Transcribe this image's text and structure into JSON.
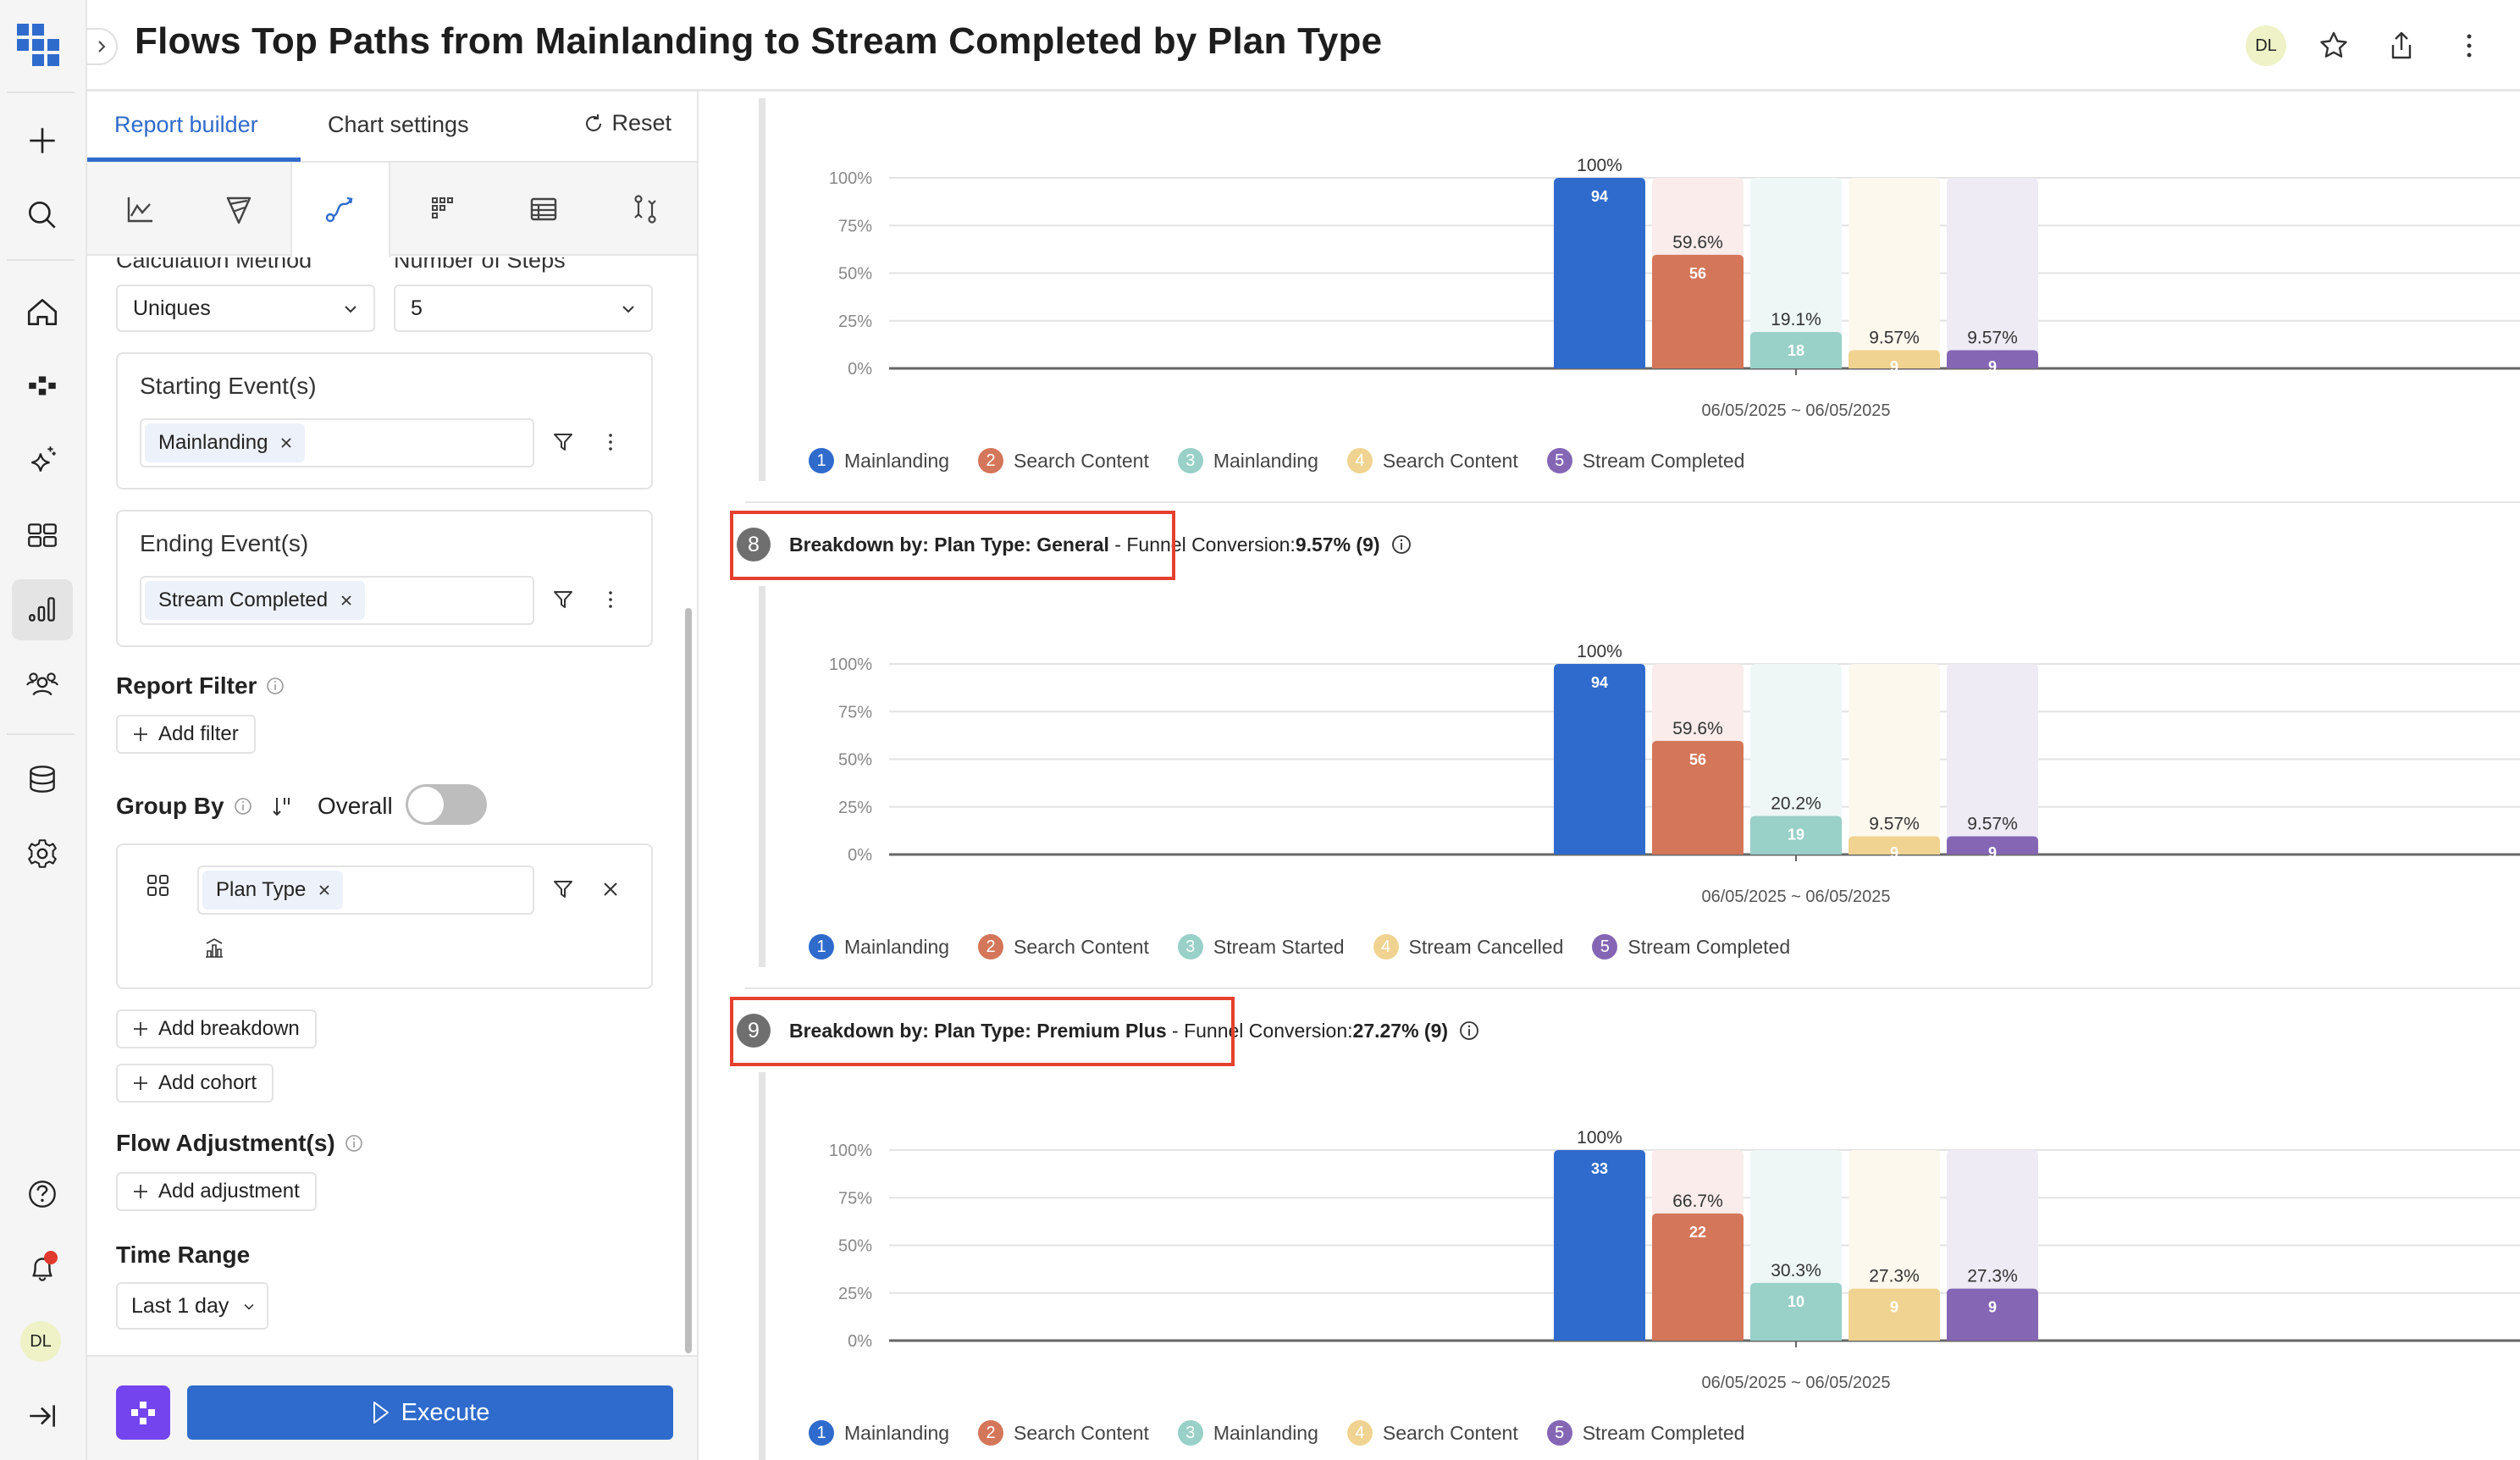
{
  "header": {
    "title": "Flows Top Paths from Mainlanding to Stream Completed by Plan Type",
    "avatar_initials": "DL"
  },
  "rail": {
    "avatar_initials": "DL",
    "items": [
      "add",
      "search",
      "home",
      "flows",
      "ai-insights",
      "dashboards",
      "reports",
      "users",
      "data",
      "settings",
      "help",
      "notifications",
      "collapse"
    ],
    "active": "reports",
    "notification_dot": true
  },
  "panel": {
    "tabs": [
      {
        "label": "Report builder",
        "active": true
      },
      {
        "label": "Chart settings",
        "active": false
      }
    ],
    "reset_label": "Reset",
    "chart_types": [
      "trend",
      "funnel",
      "flows",
      "heatmap",
      "table",
      "compare"
    ],
    "active_chart_type": "flows",
    "calculation_method": {
      "label": "Calculation Method",
      "value": "Uniques"
    },
    "number_of_steps": {
      "label": "Number of Steps",
      "value": "5"
    },
    "starting_events": {
      "title": "Starting Event(s)",
      "tag": "Mainlanding"
    },
    "ending_events": {
      "title": "Ending Event(s)",
      "tag": "Stream Completed"
    },
    "report_filter": {
      "title": "Report Filter",
      "add_label": "Add filter"
    },
    "group_by": {
      "title": "Group By",
      "overall_label": "Overall",
      "overall_on": false,
      "tag": "Plan Type"
    },
    "add_breakdown_label": "Add breakdown",
    "add_cohort_label": "Add cohort",
    "flow_adjustments": {
      "title": "Flow Adjustment(s)",
      "add_label": "Add adjustment"
    },
    "time_range": {
      "title": "Time Range",
      "value": "Last 1 day"
    },
    "execute_label": "Execute"
  },
  "colors": {
    "accent": "#2f6bcc",
    "highlight": "#e5402e",
    "steps": [
      "#2f6bcc",
      "#d4765a",
      "#99d0c8",
      "#f0d391",
      "#8566b5"
    ],
    "steps_bg": [
      "#eef3fb",
      "#f9ecea",
      "#eef7f6",
      "#fdf8ee",
      "#eeebf5"
    ]
  },
  "sections": [
    {
      "number": "",
      "title": "",
      "conversion": "",
      "date_label": "06/05/2025 ~ 06/05/2025",
      "legend": [
        "Mainlanding",
        "Search Content",
        "Mainlanding",
        "Search Content",
        "Stream Completed"
      ]
    },
    {
      "number": "8",
      "title": "Breakdown by: Plan Type: General",
      "conversion_prefix": "Funnel Conversion: ",
      "conversion": "9.57% (9)",
      "date_label": "06/05/2025 ~ 06/05/2025",
      "legend": [
        "Mainlanding",
        "Search Content",
        "Stream Started",
        "Stream Cancelled",
        "Stream Completed"
      ]
    },
    {
      "number": "9",
      "title": "Breakdown by: Plan Type: Premium Plus",
      "conversion_prefix": "Funnel Conversion: ",
      "conversion": "27.27% (9)",
      "date_label": "06/05/2025 ~ 06/05/2025",
      "legend": [
        "Mainlanding",
        "Search Content",
        "Mainlanding",
        "Search Content",
        "Stream Completed"
      ]
    }
  ],
  "chart_data": [
    {
      "type": "bar",
      "title": "",
      "categories": [
        "06/05/2025 ~ 06/05/2025"
      ],
      "ylim": [
        0,
        100
      ],
      "yticks": [
        "0%",
        "25%",
        "50%",
        "75%",
        "100%"
      ],
      "grid": true,
      "legend_position": "bottom-left",
      "series": [
        {
          "name": "Mainlanding",
          "percent": 100,
          "count": 94,
          "label": "100%"
        },
        {
          "name": "Search Content",
          "percent": 59.6,
          "count": 56,
          "label": "59.6%"
        },
        {
          "name": "Mainlanding",
          "percent": 19.1,
          "count": 18,
          "label": "19.1%"
        },
        {
          "name": "Search Content",
          "percent": 9.57,
          "count": 9,
          "label": "9.57%"
        },
        {
          "name": "Stream Completed",
          "percent": 9.57,
          "count": 9,
          "label": "9.57%"
        }
      ]
    },
    {
      "type": "bar",
      "title": "Breakdown by: Plan Type: General",
      "categories": [
        "06/05/2025 ~ 06/05/2025"
      ],
      "ylim": [
        0,
        100
      ],
      "yticks": [
        "0%",
        "25%",
        "50%",
        "75%",
        "100%"
      ],
      "grid": true,
      "legend_position": "bottom-left",
      "series": [
        {
          "name": "Mainlanding",
          "percent": 100,
          "count": 94,
          "label": "100%"
        },
        {
          "name": "Search Content",
          "percent": 59.6,
          "count": 56,
          "label": "59.6%"
        },
        {
          "name": "Stream Started",
          "percent": 20.2,
          "count": 19,
          "label": "20.2%"
        },
        {
          "name": "Stream Cancelled",
          "percent": 9.57,
          "count": 9,
          "label": "9.57%"
        },
        {
          "name": "Stream Completed",
          "percent": 9.57,
          "count": 9,
          "label": "9.57%"
        }
      ]
    },
    {
      "type": "bar",
      "title": "Breakdown by: Plan Type: Premium Plus",
      "categories": [
        "06/05/2025 ~ 06/05/2025"
      ],
      "ylim": [
        0,
        100
      ],
      "yticks": [
        "0%",
        "25%",
        "50%",
        "75%",
        "100%"
      ],
      "grid": true,
      "legend_position": "bottom-left",
      "series": [
        {
          "name": "Mainlanding",
          "percent": 100,
          "count": 33,
          "label": "100%"
        },
        {
          "name": "Search Content",
          "percent": 66.7,
          "count": 22,
          "label": "66.7%"
        },
        {
          "name": "Mainlanding",
          "percent": 30.3,
          "count": 10,
          "label": "30.3%"
        },
        {
          "name": "Search Content",
          "percent": 27.3,
          "count": 9,
          "label": "27.3%"
        },
        {
          "name": "Stream Completed",
          "percent": 27.3,
          "count": 9,
          "label": "27.3%"
        }
      ]
    }
  ]
}
